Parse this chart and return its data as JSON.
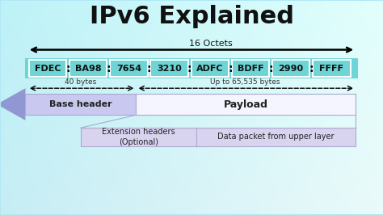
{
  "title": "IPv6 Explained",
  "title_fontsize": 22,
  "ipv6_segments": [
    "FDEC",
    "BA98",
    "7654",
    "3210",
    "ADFC",
    "BDFF",
    "2990",
    "FFFF"
  ],
  "ipv6_box_color": "#6dd5d5",
  "ipv6_border_color": "#ffffff",
  "octets_label": "16 Octets",
  "base_header_label": "Base header",
  "payload_label": "Payload",
  "ext_header_label": "Extension headers\n(Optional)",
  "data_packet_label": "Data packet from upper layer",
  "bytes_40_label": "40 bytes",
  "bytes_65535_label": "Up to 65,535 bytes",
  "base_header_color": "#c8c8f0",
  "payload_color": "#f5f5ff",
  "ext_row_color": "#d8d4f0",
  "big_arrow_color": "#8888cc",
  "bg_left_color": "#b0e8f5",
  "bg_right_color": "#d8f5f5",
  "xlim": [
    0,
    10
  ],
  "ylim": [
    0,
    10
  ]
}
